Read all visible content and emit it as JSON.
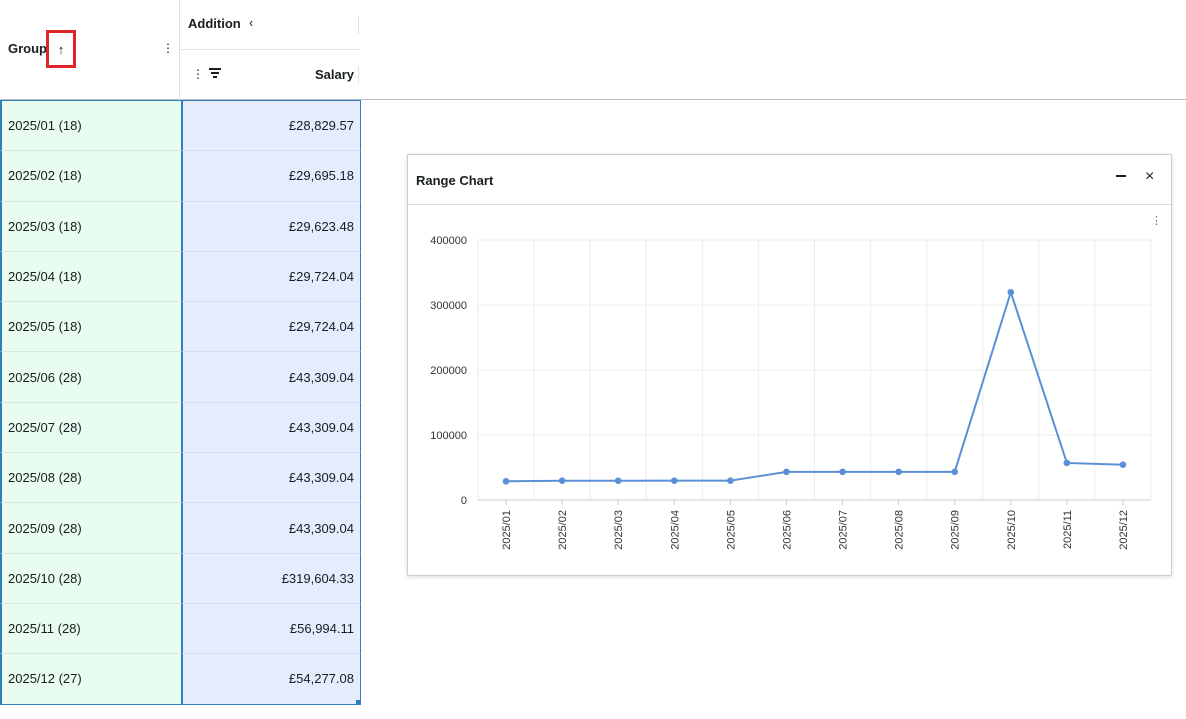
{
  "header": {
    "group_label": "Group",
    "sort_icon": "arrow-up-icon",
    "addition_label": "Addition",
    "collapse_icon": "chevron-left-icon",
    "salary_label": "Salary",
    "menu_icon": "vertical-dots-icon",
    "filter_icon": "filter-icon"
  },
  "rows": [
    {
      "group": "2025/01 (18)",
      "salary": "£28,829.57"
    },
    {
      "group": "2025/02 (18)",
      "salary": "£29,695.18"
    },
    {
      "group": "2025/03 (18)",
      "salary": "£29,623.48"
    },
    {
      "group": "2025/04 (18)",
      "salary": "£29,724.04"
    },
    {
      "group": "2025/05 (18)",
      "salary": "£29,724.04"
    },
    {
      "group": "2025/06 (28)",
      "salary": "£43,309.04"
    },
    {
      "group": "2025/07 (28)",
      "salary": "£43,309.04"
    },
    {
      "group": "2025/08 (28)",
      "salary": "£43,309.04"
    },
    {
      "group": "2025/09 (28)",
      "salary": "£43,309.04"
    },
    {
      "group": "2025/10 (28)",
      "salary": "£319,604.33"
    },
    {
      "group": "2025/11 (28)",
      "salary": "£56,994.11"
    },
    {
      "group": "2025/12 (27)",
      "salary": "£54,277.08"
    }
  ],
  "chart_panel": {
    "title": "Range Chart",
    "minimize_icon": "minimize-icon",
    "close_icon": "close-icon",
    "menu_icon": "vertical-dots-icon"
  },
  "chart_data": {
    "type": "line",
    "title": "",
    "xlabel": "",
    "ylabel": "",
    "categories": [
      "2025/01",
      "2025/02",
      "2025/03",
      "2025/04",
      "2025/05",
      "2025/06",
      "2025/07",
      "2025/08",
      "2025/09",
      "2025/10",
      "2025/11",
      "2025/12"
    ],
    "series": [
      {
        "values": [
          28829.57,
          29695.18,
          29623.48,
          29724.04,
          29724.04,
          43309.04,
          43309.04,
          43309.04,
          43309.04,
          319604.33,
          56994.11,
          54277.08
        ]
      }
    ],
    "yticks": [
      "0",
      "100000",
      "200000",
      "300000",
      "400000"
    ],
    "ylim": [
      0,
      400000
    ],
    "grid": true,
    "line_color": "#5b8fd6"
  }
}
